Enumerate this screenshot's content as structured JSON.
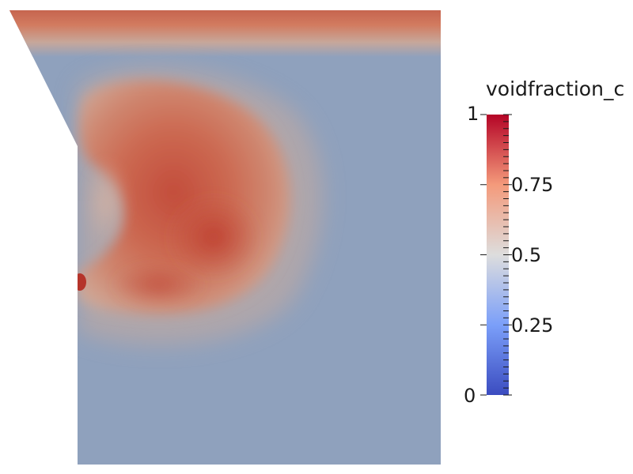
{
  "legend": {
    "title": "voidfraction_c",
    "ticks": [
      "1",
      "0.75",
      "0.5",
      "0.25",
      "0"
    ]
  },
  "colormap": {
    "name": "Cool to Warm",
    "low": "#3b4cc0",
    "mid": "#dddddd",
    "high": "#b40426",
    "field_background": "#8fa1bd"
  }
}
